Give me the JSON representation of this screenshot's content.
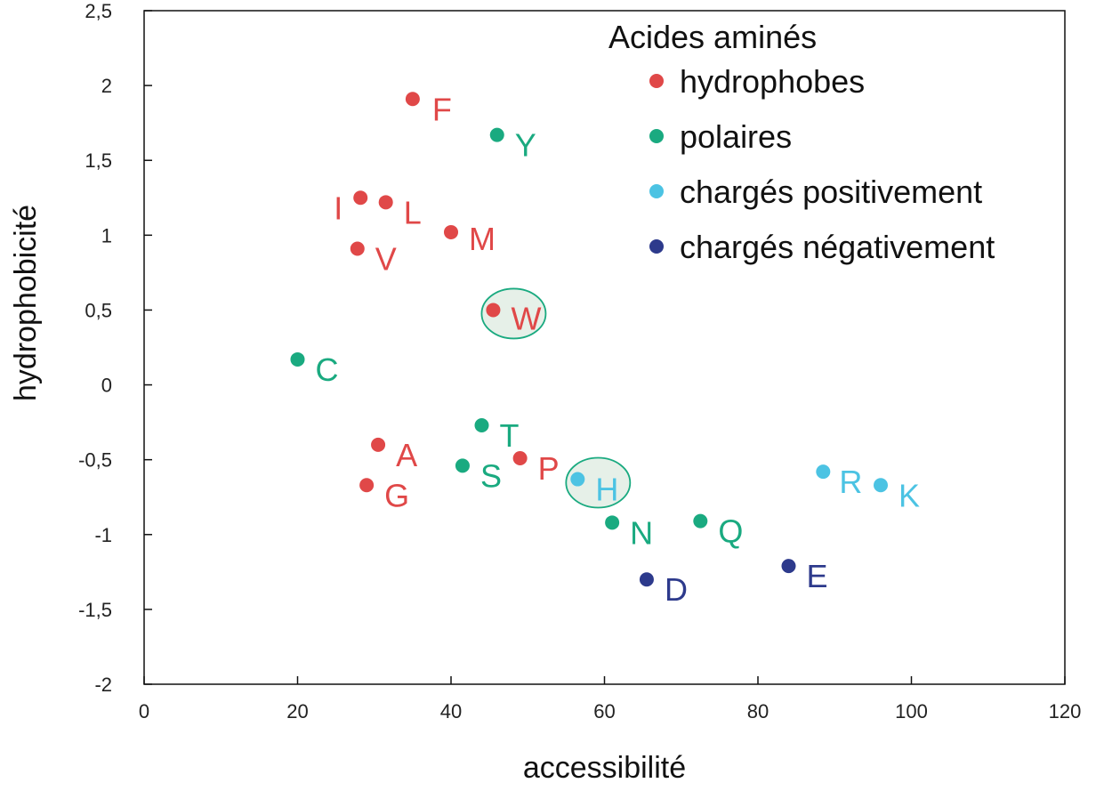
{
  "chart_data": {
    "type": "scatter",
    "xlabel": "accessibilité",
    "ylabel": "hydrophobicité",
    "xlim": [
      0,
      120
    ],
    "ylim": [
      -2,
      2.5
    ],
    "x_ticks": [
      0,
      20,
      40,
      60,
      80,
      100,
      120
    ],
    "y_ticks": [
      2.5,
      2,
      1.5,
      1,
      0.5,
      0,
      -0.5,
      -1,
      -1.5,
      -2
    ],
    "x_tick_labels": [
      "0",
      "20",
      "40",
      "60",
      "80",
      "100",
      "120"
    ],
    "y_tick_labels": [
      "2,5",
      "2",
      "1,5",
      "1",
      "0,5",
      "0",
      "-0,5",
      "-1",
      "-1,5",
      "-2"
    ],
    "grid": false,
    "legend": {
      "title": "Acides aminés",
      "placement": "top-right",
      "entries": [
        {
          "name": "hydrophobes",
          "color": "#e04848"
        },
        {
          "name": "polaires",
          "color": "#1aaa80"
        },
        {
          "name": "chargés positivement",
          "color": "#4cc3e3"
        },
        {
          "name": "chargés négativement",
          "color": "#2d3a8c"
        }
      ]
    },
    "series": [
      {
        "name": "hydrophobes",
        "color": "#e04848",
        "points": [
          {
            "label": "F",
            "x": 35,
            "y": 1.91
          },
          {
            "label": "I",
            "x": 28.2,
            "y": 1.25
          },
          {
            "label": "L",
            "x": 31.5,
            "y": 1.22
          },
          {
            "label": "M",
            "x": 40,
            "y": 1.02
          },
          {
            "label": "V",
            "x": 27.8,
            "y": 0.91
          },
          {
            "label": "W",
            "x": 45.5,
            "y": 0.5
          },
          {
            "label": "A",
            "x": 30.5,
            "y": -0.4
          },
          {
            "label": "P",
            "x": 49,
            "y": -0.49
          },
          {
            "label": "G",
            "x": 29,
            "y": -0.67
          }
        ]
      },
      {
        "name": "polaires",
        "color": "#1aaa80",
        "points": [
          {
            "label": "Y",
            "x": 46,
            "y": 1.67
          },
          {
            "label": "C",
            "x": 20,
            "y": 0.17
          },
          {
            "label": "T",
            "x": 44,
            "y": -0.27
          },
          {
            "label": "S",
            "x": 41.5,
            "y": -0.54
          },
          {
            "label": "N",
            "x": 61,
            "y": -0.92
          },
          {
            "label": "Q",
            "x": 72.5,
            "y": -0.91
          }
        ]
      },
      {
        "name": "chargés positivement",
        "color": "#4cc3e3",
        "points": [
          {
            "label": "H",
            "x": 56.5,
            "y": -0.63
          },
          {
            "label": "R",
            "x": 88.5,
            "y": -0.58
          },
          {
            "label": "K",
            "x": 96,
            "y": -0.67
          }
        ]
      },
      {
        "name": "chargés négativement",
        "color": "#2d3a8c",
        "points": [
          {
            "label": "D",
            "x": 65.5,
            "y": -1.3
          },
          {
            "label": "E",
            "x": 84,
            "y": -1.21
          }
        ]
      }
    ],
    "highlighted": [
      "W",
      "H"
    ],
    "highlight_style": {
      "stroke": "#1aaa80",
      "fill": "#e6f0e8"
    }
  }
}
